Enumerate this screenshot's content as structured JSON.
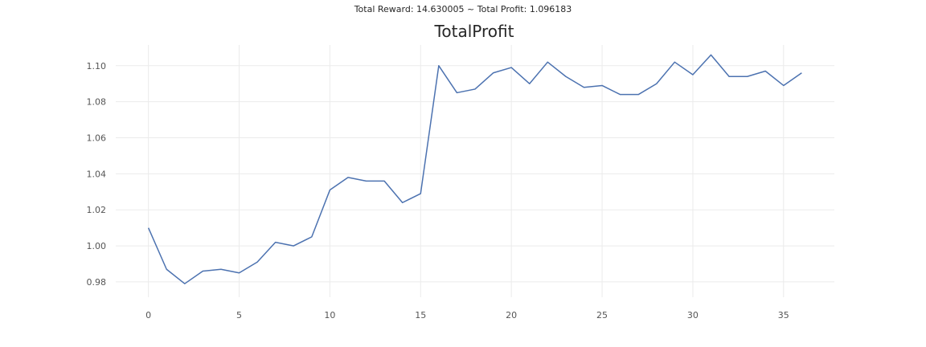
{
  "figure": {
    "suptitle": "Total Reward: 14.630005 ~ Total Profit: 1.096183"
  },
  "chart_data": {
    "type": "line",
    "title": "TotalProfit",
    "xlabel": "",
    "ylabel": "",
    "xlim": [
      -1.8,
      37.8
    ],
    "ylim": [
      0.9715,
      1.1115
    ],
    "x_ticks": [
      0,
      5,
      10,
      15,
      20,
      25,
      30,
      35
    ],
    "y_ticks": [
      0.98,
      1.0,
      1.02,
      1.04,
      1.06,
      1.08,
      1.1
    ],
    "y_tick_labels": [
      "0.98",
      "1.00",
      "1.02",
      "1.04",
      "1.06",
      "1.08",
      "1.10"
    ],
    "grid": true,
    "legend": "none",
    "series": [
      {
        "color": "#4c72b0",
        "x": [
          0,
          1,
          2,
          3,
          4,
          5,
          6,
          7,
          8,
          9,
          10,
          11,
          12,
          13,
          14,
          15,
          16,
          17,
          18,
          19,
          20,
          21,
          22,
          23,
          24,
          25,
          26,
          27,
          28,
          29,
          30,
          31,
          32,
          33,
          34,
          35,
          36
        ],
        "values": [
          1.01,
          0.987,
          0.979,
          0.986,
          0.987,
          0.985,
          0.991,
          1.002,
          1.0,
          1.005,
          1.031,
          1.038,
          1.036,
          1.036,
          1.024,
          1.029,
          1.1,
          1.085,
          1.087,
          1.096,
          1.099,
          1.09,
          1.102,
          1.094,
          1.088,
          1.089,
          1.084,
          1.084,
          1.09,
          1.102,
          1.095,
          1.106,
          1.094,
          1.094,
          1.097,
          1.089,
          1.096
        ]
      }
    ]
  }
}
